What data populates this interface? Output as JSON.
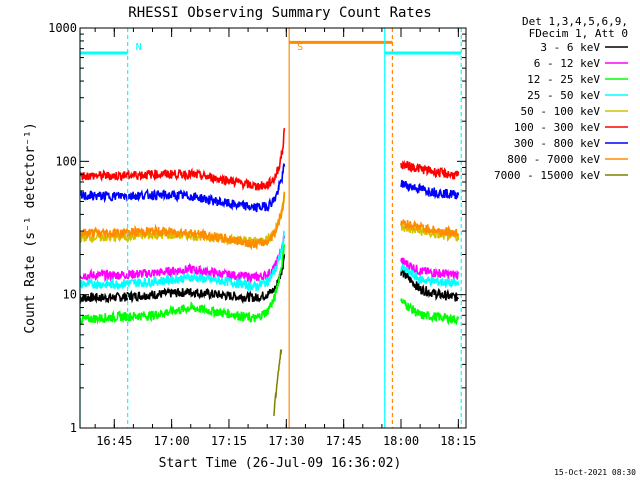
{
  "colors": {
    "background": "#ffffff",
    "axis": "#000000",
    "night_marker": "#00ffff",
    "saa_marker": "#ff8c00",
    "bands": [
      "#000000",
      "#ff00ff",
      "#00ff00",
      "#00ffff",
      "#d4c000",
      "#ff0000",
      "#0000ff",
      "#ff8c00",
      "#808000"
    ]
  },
  "chart_data": {
    "type": "line",
    "title": "RHESSI Observing Summary Count Rates",
    "xlabel": "Start Time (26-Jul-09 16:36:02)",
    "ylabel": "Count Rate (s⁻¹ detector⁻¹)",
    "y_scale": "log",
    "ylim": [
      1,
      1000
    ],
    "y_ticks": [
      1,
      10,
      100,
      1000
    ],
    "y_tick_labels": [
      "1",
      "10",
      "100",
      "1000"
    ],
    "xlim": [
      "16:36:02",
      "18:17:00"
    ],
    "x_ticks": [
      "16:45",
      "17:00",
      "17:15",
      "17:30",
      "17:45",
      "18:00",
      "18:15"
    ],
    "legend_header": [
      "Det 1,3,4,5,6,9,",
      "FDecim 1, Att 0"
    ],
    "legend_position": "outside-right",
    "series": [
      {
        "name": "3 - 6 keV",
        "x": [
          "16:36",
          "16:45",
          "16:55",
          "17:05",
          "17:15",
          "17:22",
          "17:25",
          "17:27",
          "17:28",
          "17:29",
          "17:29:30",
          "18:00",
          "18:05",
          "18:10",
          "18:15"
        ],
        "y": [
          9.5,
          9.5,
          10,
          10.5,
          9.8,
          9.5,
          10,
          11,
          13,
          16,
          20,
          15,
          11,
          10,
          9.5
        ]
      },
      {
        "name": "6 - 12 keV",
        "x": [
          "16:36",
          "16:45",
          "16:55",
          "17:05",
          "17:15",
          "17:22",
          "17:25",
          "17:27",
          "17:28",
          "17:29",
          "17:29:30",
          "18:00",
          "18:05",
          "18:10",
          "18:15"
        ],
        "y": [
          14,
          14,
          14.5,
          15.5,
          14,
          13.5,
          14,
          16,
          19,
          23,
          28,
          18,
          15,
          14.5,
          14
        ]
      },
      {
        "name": "12 - 25 keV",
        "x": [
          "16:36",
          "16:45",
          "16:55",
          "17:05",
          "17:15",
          "17:22",
          "17:25",
          "17:27",
          "17:28",
          "17:29",
          "17:29:30",
          "18:00",
          "18:05",
          "18:10",
          "18:15"
        ],
        "y": [
          6.5,
          6.8,
          7,
          8,
          7.2,
          6.6,
          7.5,
          9.5,
          13,
          18,
          25,
          9,
          7,
          6.8,
          6.5
        ]
      },
      {
        "name": "25 - 50 keV",
        "x": [
          "16:36",
          "16:45",
          "16:55",
          "17:05",
          "17:15",
          "17:22",
          "17:25",
          "17:27",
          "17:28",
          "17:29",
          "17:29:30",
          "18:00",
          "18:05",
          "18:10",
          "18:15"
        ],
        "y": [
          12,
          12,
          12.5,
          13.5,
          12.5,
          11.5,
          12.5,
          15,
          18,
          23,
          30,
          16,
          13,
          12.5,
          12
        ]
      },
      {
        "name": "50 - 100 keV",
        "x": [
          "16:36",
          "16:45",
          "16:55",
          "17:05",
          "17:15",
          "17:22",
          "17:25",
          "17:27",
          "17:28",
          "17:29",
          "17:29:30",
          "18:00",
          "18:05",
          "18:10",
          "18:15"
        ],
        "y": [
          27,
          27,
          28,
          28,
          26,
          25,
          26,
          30,
          36,
          45,
          55,
          32,
          30,
          28,
          27
        ]
      },
      {
        "name": "100 - 300 keV",
        "x": [
          "16:36",
          "16:45",
          "16:55",
          "17:05",
          "17:15",
          "17:22",
          "17:25",
          "17:27",
          "17:28",
          "17:29",
          "17:29:30",
          "18:00",
          "18:05",
          "18:10",
          "18:15"
        ],
        "y": [
          78,
          78,
          80,
          80,
          72,
          65,
          66,
          75,
          90,
          120,
          170,
          95,
          88,
          82,
          78
        ]
      },
      {
        "name": "300 - 800 keV",
        "x": [
          "16:36",
          "16:45",
          "16:55",
          "17:05",
          "17:15",
          "17:22",
          "17:25",
          "17:27",
          "17:28",
          "17:29",
          "17:29:30",
          "18:00",
          "18:05",
          "18:10",
          "18:15"
        ],
        "y": [
          55,
          55,
          56,
          55,
          48,
          45,
          46,
          52,
          62,
          78,
          95,
          68,
          62,
          58,
          56
        ]
      },
      {
        "name": "800 - 7000 keV",
        "x": [
          "16:36",
          "16:45",
          "16:55",
          "17:05",
          "17:15",
          "17:22",
          "17:25",
          "17:27",
          "17:28",
          "17:29",
          "17:29:30",
          "18:00",
          "18:05",
          "18:10",
          "18:15"
        ],
        "y": [
          29,
          29,
          30,
          29,
          26,
          24,
          25,
          29,
          35,
          44,
          55,
          35,
          32,
          30,
          29
        ]
      },
      {
        "name": "7000 - 15000 keV",
        "x": [
          "17:26:45",
          "17:27:15",
          "17:27:45",
          "17:28:15",
          "17:28:45"
        ],
        "y": [
          1.3,
          1.8,
          2.5,
          3.2,
          3.8
        ]
      }
    ],
    "annotations": [
      {
        "type": "vline",
        "x": "16:36:02",
        "label": "",
        "color": "night",
        "style": "solid"
      },
      {
        "type": "hsegment",
        "x": [
          "16:36:02",
          "16:48:30"
        ],
        "y": 650,
        "color": "night"
      },
      {
        "type": "vline",
        "x": "16:48:30",
        "label": "N",
        "color": "night",
        "style": "dashed"
      },
      {
        "type": "vline",
        "x": "17:30:45",
        "label": "S",
        "color": "saa",
        "style": "solid"
      },
      {
        "type": "hsegment",
        "x": [
          "17:30:45",
          "17:57:45"
        ],
        "y": 780,
        "color": "saa"
      },
      {
        "type": "vline",
        "x": "17:57:45",
        "label": "",
        "color": "saa",
        "style": "dashed"
      },
      {
        "type": "vline",
        "x": "17:55:45",
        "label": "",
        "color": "night",
        "style": "solid"
      },
      {
        "type": "hsegment",
        "x": [
          "17:55:45",
          "18:15:45"
        ],
        "y": 650,
        "color": "night"
      },
      {
        "type": "vline",
        "x": "18:15:45",
        "label": "",
        "color": "night",
        "style": "dashed"
      }
    ]
  },
  "footer": {
    "timestamp": "15-Oct-2021 08:30"
  }
}
